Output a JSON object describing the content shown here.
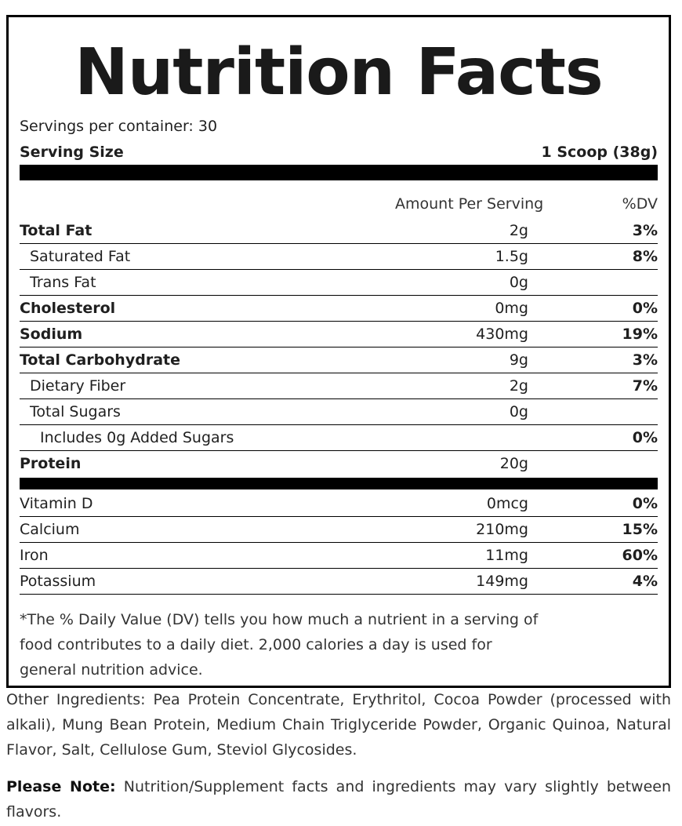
{
  "title": "Nutrition Facts",
  "servings_per_container": "Servings per container: 30",
  "serving_size_label": "Serving Size",
  "serving_size_value": "1 Scoop (38g)",
  "amount_header": "Amount Per Serving",
  "dv_header": "%DV",
  "nutrients": [
    {
      "name": "Total Fat",
      "amount": "2g",
      "dv": "3%"
    },
    {
      "name": "Saturated Fat",
      "amount": "1.5g",
      "dv": "8%"
    },
    {
      "name": "Trans Fat",
      "amount": "0g",
      "dv": ""
    },
    {
      "name": "Cholesterol",
      "amount": "0mg",
      "dv": "0%"
    },
    {
      "name": "Sodium",
      "amount": "430mg",
      "dv": "19%"
    },
    {
      "name": "Total Carbohydrate",
      "amount": "9g",
      "dv": "3%"
    },
    {
      "name": "Dietary Fiber",
      "amount": "2g",
      "dv": "7%"
    },
    {
      "name": "Total Sugars",
      "amount": "0g",
      "dv": ""
    },
    {
      "name": "Includes 0g Added Sugars",
      "amount": "",
      "dv": "0%"
    },
    {
      "name": "Protein",
      "amount": "20g",
      "dv": ""
    }
  ],
  "vitamins": [
    {
      "name": "Vitamin D",
      "amount": "0mcg",
      "dv": "0%"
    },
    {
      "name": "Calcium",
      "amount": "210mg",
      "dv": "15%"
    },
    {
      "name": "Iron",
      "amount": "11mg",
      "dv": "60%"
    },
    {
      "name": "Potassium",
      "amount": "149mg",
      "dv": "4%"
    }
  ],
  "footnote": "*The % Daily Value (DV) tells you how much a nutrient in a serving of food contributes to a daily diet. 2,000 calories a day is used for general nutrition advice.",
  "other_ingredients": "Other Ingredients: Pea Protein Concentrate, Erythritol, Cocoa Powder (processed with alkali), Mung Bean Protein, Medium Chain Triglyceride Powder, Organic Quinoa, Natural Flavor, Salt, Cellulose Gum, Steviol Glycosides.",
  "please_note_label": "Please Note:",
  "please_note_text": "Nutrition/Supplement facts and ingredients may vary slightly between flavors."
}
